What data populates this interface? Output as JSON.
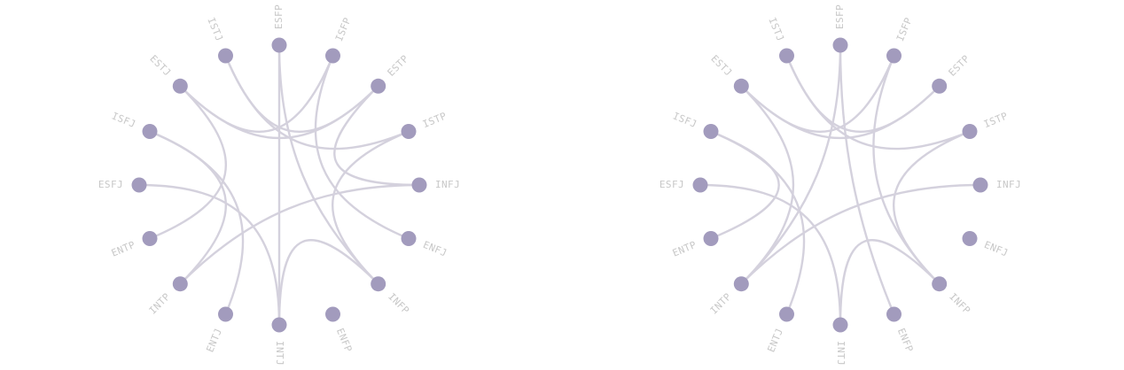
{
  "diagrams": [
    {
      "name": "left",
      "nodes": [
        "ESFP",
        "ISFP",
        "ESTP",
        "ISTP",
        "INFJ",
        "ENFJ",
        "INFP",
        "ENFP",
        "INTJ",
        "ENTJ",
        "INTP",
        "ENTP",
        "ESFJ",
        "ISFJ",
        "ESTJ",
        "ISTJ"
      ],
      "links": [
        [
          "ISTJ",
          "ISTP"
        ],
        [
          "ESTJ",
          "ESTP"
        ],
        [
          "ESFP",
          "INTJ"
        ],
        [
          "ESFP",
          "INFP"
        ],
        [
          "ISFP",
          "ENFJ"
        ],
        [
          "ISFP",
          "ESTJ"
        ],
        [
          "ESTP",
          "INFJ"
        ],
        [
          "ISTP",
          "INFP"
        ],
        [
          "INFJ",
          "INTP"
        ],
        [
          "INFP",
          "INTJ"
        ],
        [
          "ISFJ",
          "ENTJ"
        ],
        [
          "ISFJ",
          "INTP"
        ],
        [
          "ESFJ",
          "INTJ"
        ],
        [
          "ESTJ",
          "ENTP"
        ],
        [
          "ISTJ",
          "ESTP"
        ]
      ]
    },
    {
      "name": "right",
      "nodes": [
        "ESFP",
        "ISFP",
        "ESTP",
        "ISTP",
        "INFJ",
        "ENFJ",
        "INFP",
        "ENFP",
        "INTJ",
        "ENTJ",
        "INTP",
        "ENTP",
        "ESFJ",
        "ISFJ",
        "ESTJ",
        "ISTJ"
      ],
      "links": [
        [
          "ISTJ",
          "ISTP"
        ],
        [
          "ESTJ",
          "ESTP"
        ],
        [
          "ESFP",
          "ENFP"
        ],
        [
          "ESFP",
          "INTP"
        ],
        [
          "ISFP",
          "INFP"
        ],
        [
          "ISFP",
          "ESTJ"
        ],
        [
          "ESTP",
          "ISTJ"
        ],
        [
          "ISTP",
          "INFP"
        ],
        [
          "INFJ",
          "INTP"
        ],
        [
          "INFP",
          "INTJ"
        ],
        [
          "ISFJ",
          "ENTJ"
        ],
        [
          "ISFJ",
          "ENTP"
        ],
        [
          "ESFJ",
          "INTJ"
        ],
        [
          "ESTJ",
          "INTP"
        ]
      ]
    }
  ],
  "colors": {
    "node": "#a29bbd",
    "link": "#d4d1dd",
    "label": "#c8c8c8"
  }
}
